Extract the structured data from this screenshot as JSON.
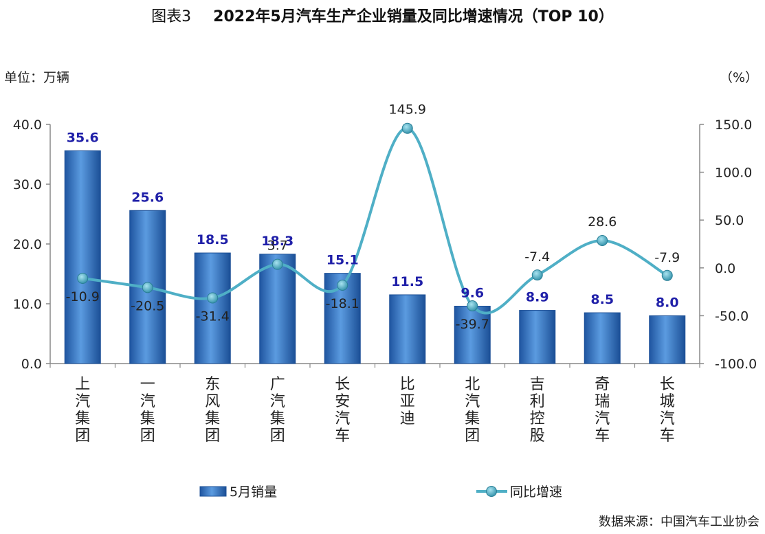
{
  "header": {
    "figure_label": "图表3",
    "title": "2022年5月汽车生产企业销量及同比增速情况（TOP 10）"
  },
  "unit_left": "单位：万辆",
  "unit_right": "（%）",
  "source": "数据来源：中国汽车工业协会",
  "colors": {
    "bar": "#2E6FBF",
    "line": "#4FAFC6",
    "bar_label": "#1F1FA8"
  },
  "chart_data": {
    "type": "bar",
    "categories": [
      "上汽集团",
      "一汽集团",
      "东风集团",
      "广汽集团",
      "长安汽车",
      "比亚迪",
      "北汽集团",
      "吉利控股",
      "奇瑞汽车",
      "长城汽车"
    ],
    "series": [
      {
        "name": "5月销量",
        "type": "bar",
        "axis": "left",
        "values": [
          35.6,
          25.6,
          18.5,
          18.3,
          15.1,
          11.5,
          9.6,
          8.9,
          8.5,
          8.0
        ],
        "labels": [
          "35.6",
          "25.6",
          "18.5",
          "18.3",
          "15.1",
          "11.5",
          "9.6",
          "8.9",
          "8.5",
          "8.0"
        ]
      },
      {
        "name": "同比增速",
        "type": "line",
        "axis": "right",
        "values": [
          -10.9,
          -20.5,
          -31.4,
          3.7,
          -18.1,
          145.9,
          -39.7,
          -7.4,
          28.6,
          -7.9
        ],
        "labels": [
          "-10.9",
          "-20.5",
          "-31.4",
          "3.7",
          "-18.1",
          "145.9",
          "-39.7",
          "-7.4",
          "28.6",
          "-7.9"
        ]
      }
    ],
    "y_left": {
      "min": 0,
      "max": 40,
      "ticks": [
        "0.0",
        "10.0",
        "20.0",
        "30.0",
        "40.0"
      ]
    },
    "y_right": {
      "min": -100,
      "max": 150,
      "ticks": [
        "-100.0",
        "-50.0",
        "0.0",
        "50.0",
        "100.0",
        "150.0"
      ]
    },
    "grid": false,
    "legend_position": "bottom"
  }
}
